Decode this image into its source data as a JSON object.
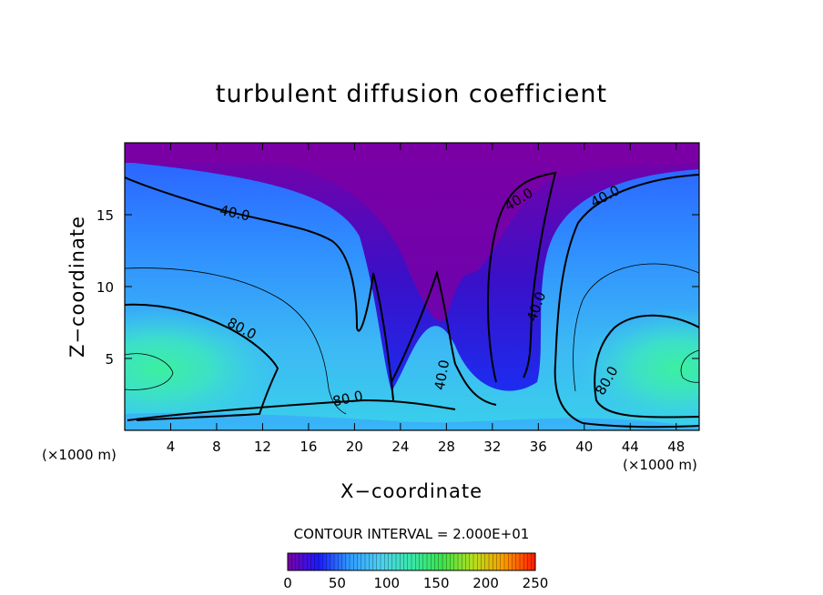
{
  "chart_data": {
    "type": "heatmap",
    "title": "turbulent diffusion coefficient",
    "xlabel": "X−coordinate",
    "ylabel": "Z−coordinate",
    "x_unit": "(×1000 m)",
    "x_unit_right": "(×1000 m)",
    "xlim": [
      0,
      50
    ],
    "ylim": [
      0,
      20
    ],
    "x_ticks": [
      4,
      8,
      12,
      16,
      20,
      24,
      28,
      32,
      36,
      40,
      44,
      48
    ],
    "y_ticks": [
      5,
      10,
      15
    ],
    "contour_interval_text": "CONTOUR INTERVAL = 2.000E+01",
    "contour_interval": 20,
    "contour_labels": [
      {
        "text": "40.0",
        "x": 9.5,
        "z": 14.8,
        "rotate": 12
      },
      {
        "text": "80.0",
        "x": 10.0,
        "z": 6.8,
        "rotate": 28
      },
      {
        "text": "80.0",
        "x": 19.5,
        "z": 1.9,
        "rotate": -12
      },
      {
        "text": "40.0",
        "x": 34.5,
        "z": 15.8,
        "rotate": -32
      },
      {
        "text": "40.0",
        "x": 42.0,
        "z": 16.0,
        "rotate": -28
      },
      {
        "text": "40.0",
        "x": 36.2,
        "z": 8.5,
        "rotate": -70
      },
      {
        "text": "40.0",
        "x": 28.0,
        "z": 3.8,
        "rotate": -80
      },
      {
        "text": "80.0",
        "x": 42.3,
        "z": 3.3,
        "rotate": -60
      }
    ],
    "colorbar": {
      "min": 0,
      "max": 250,
      "ticks": [
        0,
        50,
        100,
        150,
        200,
        250
      ],
      "colors": [
        "#7a00a6",
        "#1a1aff",
        "#2f9cff",
        "#4ed0f0",
        "#38e8a8",
        "#3ce34a",
        "#b6e01c",
        "#ff9a00",
        "#ff1a00"
      ]
    }
  }
}
